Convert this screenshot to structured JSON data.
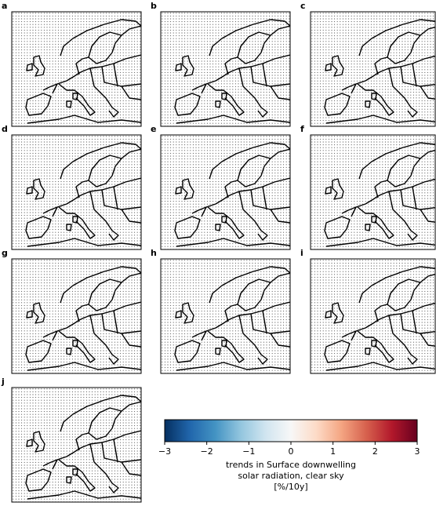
{
  "panels": [
    {
      "label": "a"
    },
    {
      "label": "b"
    },
    {
      "label": "c"
    },
    {
      "label": "d"
    },
    {
      "label": "e"
    },
    {
      "label": "f"
    },
    {
      "label": "g"
    },
    {
      "label": "h"
    },
    {
      "label": "i"
    },
    {
      "label": "j"
    }
  ],
  "colorbar": {
    "lim": [
      -3,
      3
    ],
    "ticks": [
      {
        "value": -3,
        "label": "−3"
      },
      {
        "value": -2,
        "label": "−2"
      },
      {
        "value": -1,
        "label": "−1"
      },
      0,
      1,
      2,
      3
    ],
    "colors": [
      "#053061",
      "#2166ac",
      "#4393c3",
      "#92c5de",
      "#d1e5f0",
      "#f7f7f7",
      "#fddbc7",
      "#f4a582",
      "#d6604d",
      "#b2182b",
      "#67001f"
    ],
    "label": [
      "trends in Surface downwelling",
      "solar radiation, clear sky",
      "[%/10y]"
    ]
  }
}
